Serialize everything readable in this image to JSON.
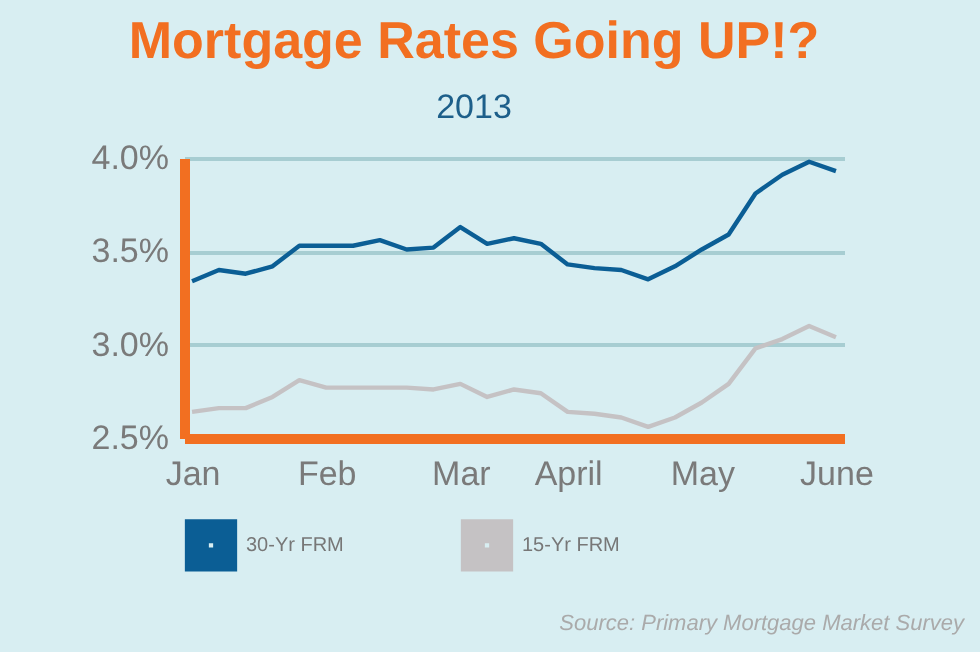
{
  "chart_data": {
    "type": "line",
    "title": "Mortgage Rates Going UP!?",
    "subtitle": "2013",
    "categories": [
      "Jan",
      null,
      null,
      null,
      null,
      "Feb",
      null,
      null,
      null,
      null,
      "Mar",
      null,
      null,
      null,
      "April",
      null,
      null,
      null,
      null,
      "May",
      null,
      null,
      null,
      null,
      "June"
    ],
    "series": [
      {
        "name": "30-Yr FRM",
        "color": "#0b5e95",
        "values": [
          3.34,
          3.4,
          3.38,
          3.42,
          3.53,
          3.53,
          3.53,
          3.56,
          3.51,
          3.52,
          3.63,
          3.54,
          3.57,
          3.54,
          3.43,
          3.41,
          3.4,
          3.35,
          3.42,
          3.51,
          3.59,
          3.81,
          3.91,
          3.98,
          3.93
        ]
      },
      {
        "name": "15-Yr FRM",
        "color": "#c5c2c4",
        "values": [
          2.64,
          2.66,
          2.66,
          2.72,
          2.81,
          2.77,
          2.77,
          2.77,
          2.77,
          2.76,
          2.79,
          2.72,
          2.76,
          2.74,
          2.64,
          2.63,
          2.61,
          2.56,
          2.61,
          2.69,
          2.79,
          2.98,
          3.03,
          3.1,
          3.04
        ]
      }
    ],
    "ylim": [
      2.5,
      4.0
    ],
    "yticks": [
      {
        "value": 2.5,
        "label": "2.5%"
      },
      {
        "value": 3.0,
        "label": "3.0%"
      },
      {
        "value": 3.5,
        "label": "3.5%"
      },
      {
        "value": 4.0,
        "label": "4.0%"
      }
    ],
    "grid": "y",
    "legend": "bottom left",
    "marker": "none",
    "line_style": "solid",
    "annotations": [
      "Source: Primary Mortgage Market Survey"
    ]
  }
}
